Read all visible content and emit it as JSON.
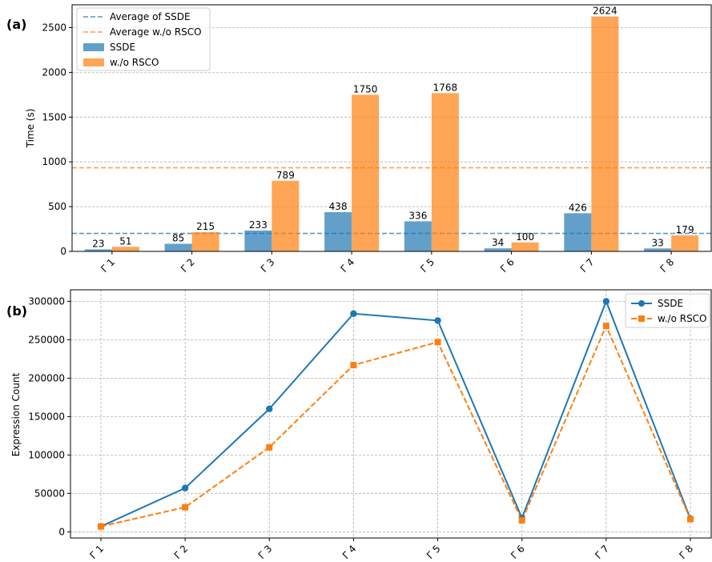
{
  "chart_data": [
    {
      "panel_label": "(a)",
      "type": "bar",
      "categories": [
        "Γ 1",
        "Γ 2",
        "Γ 3",
        "Γ 4",
        "Γ 5",
        "Γ 6",
        "Γ 7",
        "Γ 8"
      ],
      "series": [
        {
          "name": "SSDE",
          "values": [
            23,
            85,
            233,
            438,
            336,
            34,
            426,
            33
          ],
          "color": "#1f77b4"
        },
        {
          "name": "w./o RSCO",
          "values": [
            51,
            215,
            789,
            1750,
            1768,
            100,
            2624,
            179
          ],
          "color": "#ff7f0e"
        }
      ],
      "reference_lines": [
        {
          "name": "Average of SSDE",
          "value": 201,
          "color": "#1f77b4"
        },
        {
          "name": "Average w./o RSCO",
          "value": 934.5,
          "color": "#ff7f0e"
        }
      ],
      "xlabel": "",
      "ylabel": "Time (s)",
      "ylim": [
        0,
        2755
      ],
      "yticks": [
        0,
        500,
        1000,
        1500,
        2000,
        2500
      ],
      "grid": "y",
      "legend": "top-left"
    },
    {
      "panel_label": "(b)",
      "type": "line",
      "categories": [
        "Γ 1",
        "Γ 2",
        "Γ 3",
        "Γ 4",
        "Γ 5",
        "Γ 6",
        "Γ 7",
        "Γ 8"
      ],
      "series": [
        {
          "name": "SSDE",
          "values": [
            7000,
            57000,
            160000,
            284000,
            275000,
            18000,
            300000,
            17000
          ],
          "color": "#1f77b4",
          "marker": "circle",
          "style": "solid"
        },
        {
          "name": "w./o RSCO",
          "values": [
            7000,
            32000,
            110000,
            217000,
            247000,
            15000,
            268000,
            16500
          ],
          "color": "#ff7f0e",
          "marker": "square",
          "style": "dashed"
        }
      ],
      "xlabel": "",
      "ylabel": "Expression Count",
      "ylim": [
        -8000,
        315000
      ],
      "yticks": [
        0,
        50000,
        100000,
        150000,
        200000,
        250000,
        300000
      ],
      "grid": "both",
      "legend": "top-right"
    }
  ]
}
